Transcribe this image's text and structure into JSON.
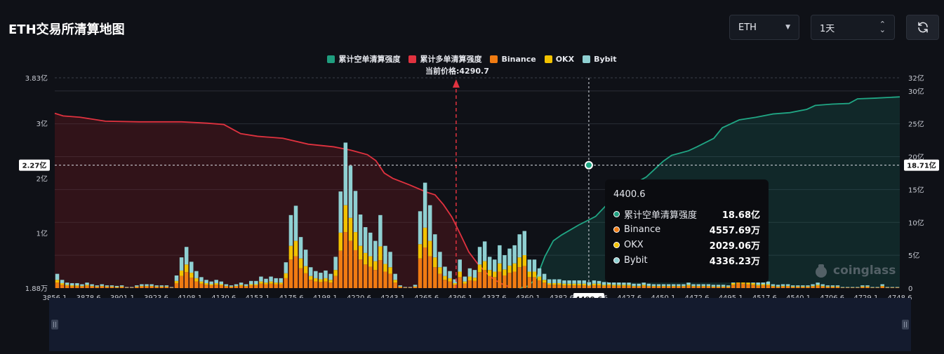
{
  "header": {
    "title": "ETH交易所清算地图",
    "coin_select": "ETH",
    "period_select": "1天"
  },
  "legend": [
    {
      "label": "累计空单清算强度",
      "color": "#1f9e7f"
    },
    {
      "label": "累计多单清算强度",
      "color": "#e0323f"
    },
    {
      "label": "Binance",
      "color": "#f07b12"
    },
    {
      "label": "OKX",
      "color": "#f2c200"
    },
    {
      "label": "Bybit",
      "color": "#8fd0d2"
    }
  ],
  "current_price_label": "当前价格:4290.7",
  "watermark": "coinglass",
  "tooltip": {
    "title": "4400.6",
    "rows": [
      {
        "name": "累计空单清算强度",
        "value": "18.68亿",
        "color": "#1f9e7f"
      },
      {
        "name": "Binance",
        "value": "4557.69万",
        "color": "#f07b12"
      },
      {
        "name": "OKX",
        "value": "2029.06万",
        "color": "#f2c200"
      },
      {
        "name": "Bybit",
        "value": "4336.23万",
        "color": "#8fd0d2"
      }
    ]
  },
  "chart_data": {
    "type": "bar",
    "title": "ETH交易所清算地图",
    "x_tick_labels": [
      "3856.1",
      "3878.6",
      "3901.1",
      "3923.6",
      "4108.1",
      "4130.6",
      "4153.1",
      "4175.6",
      "4198.1",
      "4220.6",
      "4243.1",
      "4265.6",
      "4306.1",
      "4337.6",
      "4360.1",
      "4382.6",
      "4400.6",
      "4427.6",
      "4450.1",
      "4472.6",
      "4495.1",
      "4517.6",
      "4540.1",
      "4706.6",
      "4729.1",
      "4748.6"
    ],
    "x_range": [
      "3856.1",
      "4748.6"
    ],
    "left_axis": {
      "unit": "亿",
      "ticks": [
        "1.88万",
        "1亿",
        "2亿",
        "3亿",
        "3.83亿"
      ],
      "values": [
        0.000188,
        1,
        2,
        3,
        3.83
      ],
      "range": [
        0,
        3.83
      ]
    },
    "right_axis": {
      "unit": "亿",
      "ticks": [
        "0",
        "5亿",
        "10亿",
        "15亿",
        "20亿",
        "25亿",
        "30亿",
        "32亿"
      ],
      "values": [
        0,
        5,
        10,
        15,
        20,
        25,
        30,
        32
      ],
      "range": [
        0,
        32
      ]
    },
    "current_price": 4290.7,
    "crosshair": {
      "x_label": "4400.6",
      "left_label": "2.27亿",
      "right_label": "18.71亿"
    },
    "series": [
      {
        "name": "Binance",
        "axis": "left",
        "values": [
          0.1,
          0.06,
          0.04,
          0.03,
          0.03,
          0.03,
          0.04,
          0.03,
          0.02,
          0.03,
          0.02,
          0.02,
          0.01,
          0.02,
          0.01,
          0.01,
          0.02,
          0.03,
          0.03,
          0.03,
          0.02,
          0.02,
          0.02,
          0.01,
          0.09,
          0.22,
          0.29,
          0.19,
          0.12,
          0.08,
          0.06,
          0.05,
          0.06,
          0.05,
          0.03,
          0.02,
          0.03,
          0.04,
          0.03,
          0.05,
          0.05,
          0.08,
          0.07,
          0.08,
          0.07,
          0.07,
          0.18,
          0.52,
          0.58,
          0.36,
          0.27,
          0.15,
          0.12,
          0.11,
          0.12,
          0.1,
          0.22,
          0.68,
          1.02,
          0.86,
          0.69,
          0.52,
          0.43,
          0.39,
          0.33,
          0.51,
          0.3,
          0.26,
          0.1,
          0.02,
          0.01,
          0.01,
          0.02,
          0.54,
          0.74,
          0.58,
          0.38,
          0.26,
          0.15,
          0.12,
          0.06,
          0.2,
          0.08,
          0.14,
          0.13,
          0.29,
          0.33,
          0.22,
          0.2,
          0.3,
          0.23,
          0.28,
          0.3,
          0.38,
          0.4,
          0.2,
          0.2,
          0.14,
          0.1,
          0.06,
          0.06,
          0.06,
          0.05,
          0.05,
          0.05,
          0.05,
          0.05,
          0.04,
          0.05,
          0.05,
          0.04,
          0.05,
          0.04,
          0.04,
          0.04,
          0.04,
          0.03,
          0.03,
          0.04,
          0.03,
          0.03,
          0.03,
          0.03,
          0.03,
          0.03,
          0.03,
          0.03,
          0.04,
          0.03,
          0.03,
          0.03,
          0.03,
          0.02,
          0.02,
          0.02,
          0.02,
          0.06,
          0.09,
          0.08,
          0.07,
          0.06,
          0.04,
          0.05,
          0.05,
          0.03,
          0.02,
          0.03,
          0.03,
          0.02,
          0.02,
          0.02,
          0.02,
          0.03,
          0.04,
          0.03,
          0.02,
          0.02,
          0.02,
          0.01,
          0.01,
          0.01,
          0.01,
          0.02,
          0.02,
          0.01,
          0.01,
          0.03,
          0.01,
          0.01,
          0.01
        ]
      },
      {
        "name": "OKX",
        "axis": "left",
        "values": [
          0.05,
          0.03,
          0.02,
          0.02,
          0.02,
          0.01,
          0.02,
          0.01,
          0.01,
          0.01,
          0.01,
          0.01,
          0.01,
          0.01,
          0.0,
          0.0,
          0.01,
          0.01,
          0.01,
          0.01,
          0.01,
          0.01,
          0.01,
          0.0,
          0.04,
          0.1,
          0.14,
          0.09,
          0.06,
          0.04,
          0.03,
          0.02,
          0.03,
          0.02,
          0.01,
          0.01,
          0.01,
          0.02,
          0.01,
          0.02,
          0.02,
          0.04,
          0.03,
          0.04,
          0.03,
          0.03,
          0.09,
          0.25,
          0.28,
          0.18,
          0.13,
          0.07,
          0.06,
          0.05,
          0.06,
          0.05,
          0.11,
          0.33,
          0.49,
          0.42,
          0.33,
          0.25,
          0.21,
          0.19,
          0.16,
          0.25,
          0.14,
          0.12,
          0.05,
          0.01,
          0.0,
          0.0,
          0.01,
          0.26,
          0.36,
          0.28,
          0.18,
          0.12,
          0.07,
          0.06,
          0.03,
          0.1,
          0.04,
          0.07,
          0.06,
          0.14,
          0.16,
          0.11,
          0.1,
          0.15,
          0.11,
          0.13,
          0.15,
          0.18,
          0.2,
          0.1,
          0.1,
          0.07,
          0.05,
          0.03,
          0.03,
          0.03,
          0.03,
          0.03,
          0.03,
          0.03,
          0.03,
          0.02,
          0.03,
          0.03,
          0.02,
          0.02,
          0.02,
          0.02,
          0.02,
          0.02,
          0.01,
          0.01,
          0.02,
          0.01,
          0.01,
          0.01,
          0.01,
          0.01,
          0.01,
          0.01,
          0.01,
          0.02,
          0.01,
          0.01,
          0.01,
          0.01,
          0.01,
          0.01,
          0.01,
          0.01,
          0.03,
          0.04,
          0.04,
          0.03,
          0.03,
          0.02,
          0.02,
          0.02,
          0.01,
          0.01,
          0.01,
          0.01,
          0.01,
          0.01,
          0.01,
          0.01,
          0.01,
          0.02,
          0.01,
          0.01,
          0.01,
          0.01,
          0.0,
          0.0,
          0.0,
          0.0,
          0.01,
          0.01,
          0.0,
          0.0,
          0.01,
          0.0,
          0.0,
          0.0
        ]
      },
      {
        "name": "Bybit",
        "axis": "left",
        "values": [
          0.11,
          0.06,
          0.04,
          0.04,
          0.04,
          0.03,
          0.04,
          0.03,
          0.02,
          0.03,
          0.02,
          0.02,
          0.02,
          0.02,
          0.01,
          0.01,
          0.02,
          0.03,
          0.03,
          0.03,
          0.02,
          0.02,
          0.02,
          0.01,
          0.1,
          0.24,
          0.32,
          0.2,
          0.13,
          0.08,
          0.06,
          0.05,
          0.06,
          0.05,
          0.03,
          0.02,
          0.03,
          0.04,
          0.03,
          0.06,
          0.06,
          0.09,
          0.07,
          0.09,
          0.08,
          0.08,
          0.2,
          0.56,
          0.64,
          0.39,
          0.3,
          0.16,
          0.13,
          0.12,
          0.14,
          0.11,
          0.24,
          0.75,
          1.14,
          0.95,
          0.75,
          0.57,
          0.47,
          0.43,
          0.37,
          0.57,
          0.33,
          0.28,
          0.11,
          0.02,
          0.01,
          0.01,
          0.03,
          0.6,
          0.82,
          0.65,
          0.42,
          0.28,
          0.17,
          0.13,
          0.07,
          0.22,
          0.09,
          0.15,
          0.14,
          0.32,
          0.36,
          0.24,
          0.22,
          0.33,
          0.26,
          0.31,
          0.33,
          0.42,
          0.44,
          0.22,
          0.22,
          0.15,
          0.11,
          0.07,
          0.07,
          0.07,
          0.06,
          0.06,
          0.06,
          0.06,
          0.06,
          0.05,
          0.06,
          0.05,
          0.05,
          0.05,
          0.05,
          0.05,
          0.04,
          0.04,
          0.04,
          0.04,
          0.04,
          0.04,
          0.03,
          0.03,
          0.03,
          0.03,
          0.03,
          0.03,
          0.03,
          0.04,
          0.03,
          0.03,
          0.03,
          0.03,
          0.03,
          0.03,
          0.03,
          0.02,
          0.07,
          0.1,
          0.09,
          0.08,
          0.06,
          0.05,
          0.05,
          0.05,
          0.03,
          0.03,
          0.03,
          0.03,
          0.02,
          0.02,
          0.02,
          0.02,
          0.03,
          0.04,
          0.03,
          0.02,
          0.02,
          0.02,
          0.01,
          0.01,
          0.01,
          0.01,
          0.02,
          0.02,
          0.01,
          0.01,
          0.03,
          0.01,
          0.01,
          0.01
        ]
      },
      {
        "name": "累计多单清算强度",
        "axis": "right",
        "type": "area",
        "x_fraction_points": [
          [
            0.0,
            26.6
          ],
          [
            0.01,
            26.2
          ],
          [
            0.03,
            26.0
          ],
          [
            0.06,
            25.4
          ],
          [
            0.1,
            25.3
          ],
          [
            0.15,
            25.3
          ],
          [
            0.18,
            25.1
          ],
          [
            0.2,
            24.9
          ],
          [
            0.22,
            23.5
          ],
          [
            0.24,
            23.1
          ],
          [
            0.27,
            22.8
          ],
          [
            0.3,
            21.9
          ],
          [
            0.33,
            21.5
          ],
          [
            0.35,
            21.0
          ],
          [
            0.37,
            20.3
          ],
          [
            0.38,
            19.4
          ],
          [
            0.39,
            17.5
          ],
          [
            0.4,
            16.7
          ],
          [
            0.42,
            15.7
          ],
          [
            0.44,
            14.6
          ],
          [
            0.45,
            14.2
          ],
          [
            0.46,
            12.7
          ],
          [
            0.47,
            10.8
          ],
          [
            0.48,
            8.2
          ],
          [
            0.49,
            5.5
          ],
          [
            0.5,
            3.8
          ],
          [
            0.51,
            2.4
          ],
          [
            0.52,
            1.3
          ],
          [
            0.53,
            0.6
          ],
          [
            0.54,
            0.1
          ]
        ]
      },
      {
        "name": "累计空单清算强度",
        "axis": "right",
        "type": "area",
        "x_fraction_points": [
          [
            0.55,
            0.0
          ],
          [
            0.56,
            0.3
          ],
          [
            0.57,
            1.5
          ],
          [
            0.58,
            4.8
          ],
          [
            0.59,
            7.2
          ],
          [
            0.6,
            8.1
          ],
          [
            0.62,
            9.6
          ],
          [
            0.64,
            10.9
          ],
          [
            0.66,
            13.6
          ],
          [
            0.68,
            15.5
          ],
          [
            0.7,
            16.9
          ],
          [
            0.72,
            19.3
          ],
          [
            0.73,
            20.2
          ],
          [
            0.75,
            20.9
          ],
          [
            0.76,
            21.5
          ],
          [
            0.78,
            22.8
          ],
          [
            0.79,
            24.4
          ],
          [
            0.81,
            25.6
          ],
          [
            0.83,
            26.0
          ],
          [
            0.85,
            26.5
          ],
          [
            0.87,
            26.7
          ],
          [
            0.89,
            27.2
          ],
          [
            0.9,
            27.8
          ],
          [
            0.92,
            28.0
          ],
          [
            0.94,
            28.1
          ],
          [
            0.95,
            28.8
          ],
          [
            0.97,
            28.9
          ],
          [
            1.0,
            29.1
          ]
        ]
      }
    ]
  }
}
